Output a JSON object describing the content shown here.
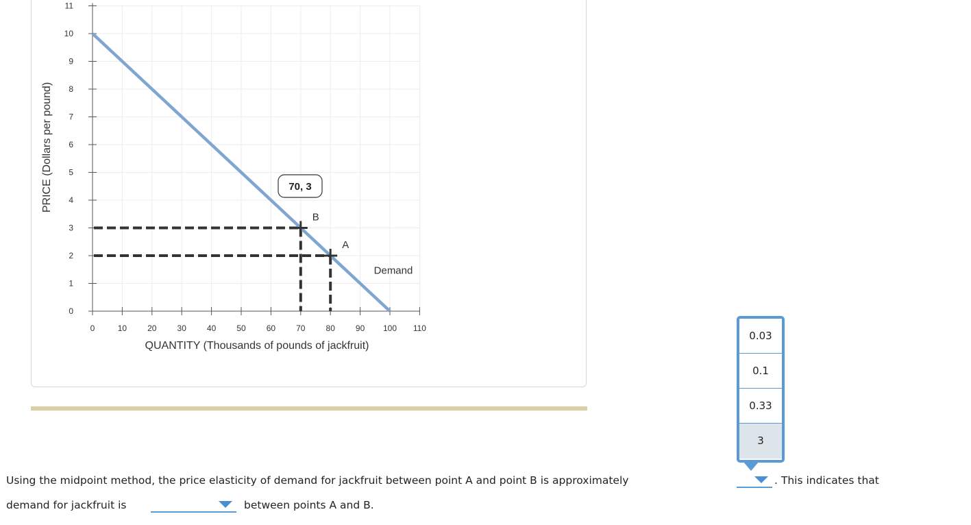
{
  "chart_data": {
    "type": "line",
    "xlabel": "QUANTITY (Thousands of pounds of jackfruit)",
    "ylabel": "PRICE (Dollars per pound)",
    "xlim": [
      0,
      110
    ],
    "ylim": [
      0,
      11
    ],
    "x_ticks": [
      0,
      10,
      20,
      30,
      40,
      50,
      60,
      70,
      80,
      90,
      100,
      110
    ],
    "y_ticks": [
      0,
      1,
      2,
      3,
      4,
      5,
      6,
      7,
      8,
      9,
      10,
      11
    ],
    "grid": true,
    "series": [
      {
        "name": "Demand",
        "x": [
          0,
          100
        ],
        "y": [
          10,
          0
        ],
        "color": "#7ea6d0"
      }
    ],
    "points": [
      {
        "label": "B",
        "x": 70,
        "y": 3
      },
      {
        "label": "A",
        "x": 80,
        "y": 2
      }
    ],
    "callout": "70, 3",
    "dashed_guides": true
  },
  "question": {
    "line1_before": "Using the midpoint method, the price elasticity of demand for jackfruit between point A and point B is approximately",
    "line1_after": ". This indicates that",
    "line2_before": "demand for jackfruit is",
    "line2_after": "between points A and B."
  },
  "dropdown_options": [
    "0.03",
    "0.1",
    "0.33",
    "3"
  ],
  "colors": {
    "demand_line": "#7ea6d0",
    "guides": "#333333",
    "accent": "#5b9bd5",
    "divider": "#dccfa8",
    "selected_option": "#dde4ea"
  }
}
